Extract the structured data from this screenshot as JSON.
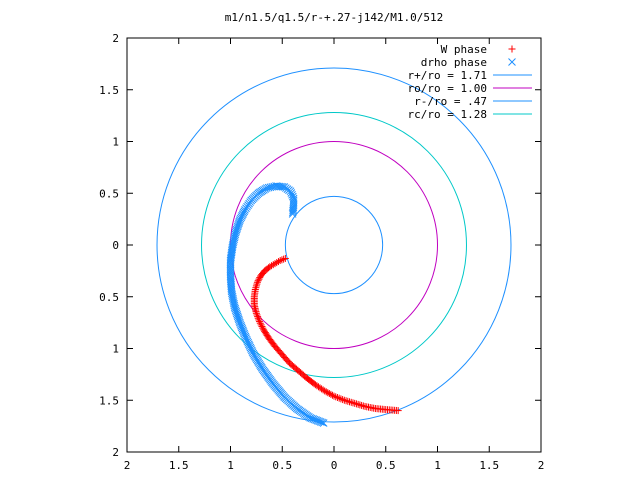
{
  "chart_data": {
    "type": "scatter",
    "title": "m1/n1.5/q1.5/r-+.27-j142/M1.0/512",
    "xlabel": "",
    "ylabel": "",
    "xlim": [
      -2,
      2
    ],
    "ylim": [
      -2,
      2
    ],
    "x_ticks": [
      -2,
      -1.5,
      -1,
      -0.5,
      0,
      0.5,
      1,
      1.5,
      2
    ],
    "y_ticks": [
      -2,
      -1.5,
      -1,
      -0.5,
      0,
      0.5,
      1,
      1.5,
      2
    ],
    "x_tick_labels": [
      "2",
      "1.5",
      "1",
      "0.5",
      "0",
      "0.5",
      "1",
      "1.5",
      "2"
    ],
    "y_tick_labels": [
      "2",
      "1.5",
      "1",
      "0.5",
      "0",
      "0.5",
      "1",
      "1.5",
      "2"
    ],
    "grid": false,
    "legend_position": "top-right",
    "series": [
      {
        "name": "W phase",
        "kind": "points",
        "marker": "plus",
        "color": "#ff0000",
        "points": [
          [
            -0.47,
            -0.13
          ],
          [
            -0.52,
            -0.15
          ],
          [
            -0.57,
            -0.18
          ],
          [
            -0.62,
            -0.21
          ],
          [
            -0.67,
            -0.25
          ],
          [
            -0.71,
            -0.3
          ],
          [
            -0.74,
            -0.36
          ],
          [
            -0.76,
            -0.43
          ],
          [
            -0.77,
            -0.5
          ],
          [
            -0.77,
            -0.58
          ],
          [
            -0.75,
            -0.66
          ],
          [
            -0.72,
            -0.74
          ],
          [
            -0.68,
            -0.82
          ],
          [
            -0.63,
            -0.9
          ],
          [
            -0.57,
            -0.98
          ],
          [
            -0.5,
            -1.06
          ],
          [
            -0.43,
            -1.14
          ],
          [
            -0.35,
            -1.21
          ],
          [
            -0.27,
            -1.28
          ],
          [
            -0.18,
            -1.35
          ],
          [
            -0.09,
            -1.41
          ],
          [
            0.0,
            -1.46
          ],
          [
            0.1,
            -1.5
          ],
          [
            0.2,
            -1.53
          ],
          [
            0.3,
            -1.56
          ],
          [
            0.4,
            -1.58
          ],
          [
            0.5,
            -1.59
          ],
          [
            0.62,
            -1.6
          ]
        ]
      },
      {
        "name": "drho phase",
        "kind": "points",
        "marker": "cross",
        "color": "#1e90ff",
        "points": [
          [
            -0.4,
            0.3
          ],
          [
            -0.39,
            0.38
          ],
          [
            -0.39,
            0.45
          ],
          [
            -0.42,
            0.52
          ],
          [
            -0.48,
            0.56
          ],
          [
            -0.56,
            0.57
          ],
          [
            -0.65,
            0.55
          ],
          [
            -0.73,
            0.5
          ],
          [
            -0.8,
            0.43
          ],
          [
            -0.86,
            0.34
          ],
          [
            -0.91,
            0.24
          ],
          [
            -0.95,
            0.12
          ],
          [
            -0.98,
            -0.01
          ],
          [
            -1.0,
            -0.15
          ],
          [
            -1.0,
            -0.3
          ],
          [
            -0.99,
            -0.45
          ],
          [
            -0.96,
            -0.6
          ],
          [
            -0.91,
            -0.75
          ],
          [
            -0.85,
            -0.9
          ],
          [
            -0.78,
            -1.05
          ],
          [
            -0.69,
            -1.2
          ],
          [
            -0.59,
            -1.34
          ],
          [
            -0.48,
            -1.47
          ],
          [
            -0.36,
            -1.58
          ],
          [
            -0.23,
            -1.67
          ],
          [
            -0.1,
            -1.72
          ]
        ]
      },
      {
        "name": "r+/ro = 1.71",
        "kind": "circle",
        "radius": 1.71,
        "color": "#1e90ff"
      },
      {
        "name": "ro/ro = 1.00",
        "kind": "circle",
        "radius": 1.0,
        "color": "#c000c0"
      },
      {
        "name": "r-/ro = .47",
        "kind": "circle",
        "radius": 0.47,
        "color": "#1e90ff"
      },
      {
        "name": "rc/ro = 1.28",
        "kind": "circle",
        "radius": 1.28,
        "color": "#00c8c8"
      }
    ]
  }
}
